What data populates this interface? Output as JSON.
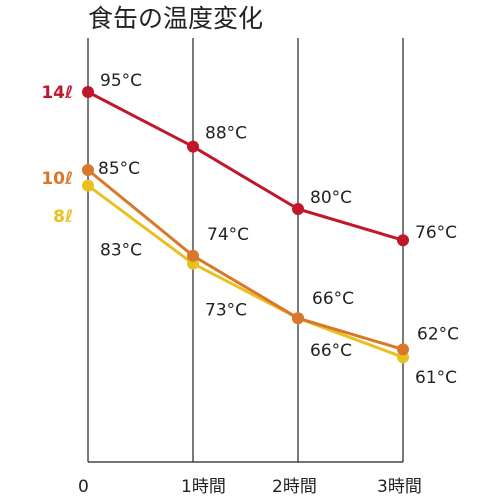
{
  "chart_data": {
    "type": "line",
    "title": "食缶の温度変化",
    "xlabel": "",
    "ylabel": "",
    "categories": [
      "0",
      "1時間",
      "2時間",
      "3時間"
    ],
    "ylim": [
      55,
      100
    ],
    "grid": true,
    "unit": "°C",
    "series": [
      {
        "name": "14ℓ",
        "color": "#c0182a",
        "values": [
          95,
          88,
          80,
          76
        ],
        "labels": [
          "95°C",
          "88°C",
          "80°C",
          "76°C"
        ]
      },
      {
        "name": "10ℓ",
        "color": "#d9782a",
        "values": [
          85,
          74,
          66,
          62
        ],
        "labels": [
          "85°C",
          "74°C",
          "66°C",
          "62°C"
        ]
      },
      {
        "name": "8ℓ",
        "color": "#e8c020",
        "values": [
          83,
          73,
          66,
          61
        ],
        "labels": [
          "83°C",
          "73°C",
          "66°C",
          "61°C"
        ]
      }
    ]
  }
}
